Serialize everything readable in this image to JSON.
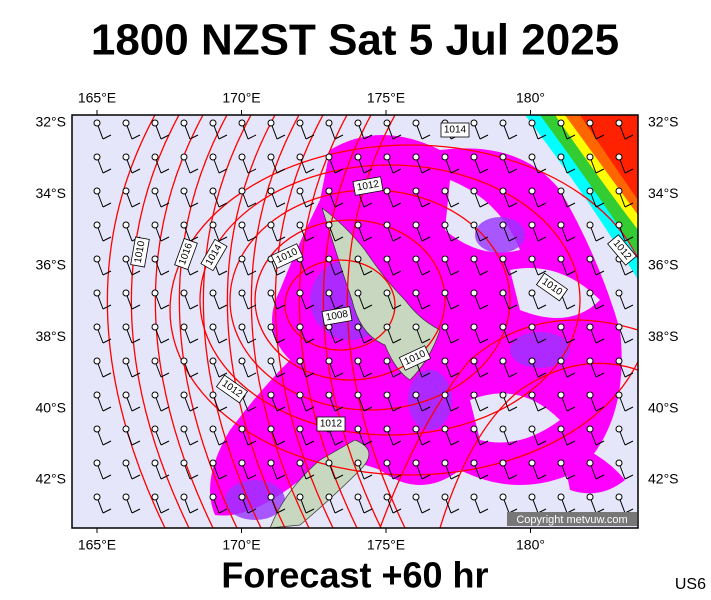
{
  "header": {
    "title": "1800 NZST Sat 5 Jul 2025"
  },
  "map": {
    "lon_labels": [
      "165°E",
      "170°E",
      "175°E",
      "180°"
    ],
    "lat_labels": [
      "32°S",
      "34°S",
      "36°S",
      "38°S",
      "40°S",
      "42°S"
    ],
    "isobar_labels": [
      "1014",
      "1012",
      "1010",
      "1016",
      "1014",
      "1010",
      "1008",
      "1010",
      "1010",
      "1012",
      "1012",
      "1012"
    ],
    "copyright": "Copyright metvuw.com"
  },
  "footer": {
    "forecast": "Forecast +60 hr",
    "code": "US6"
  }
}
